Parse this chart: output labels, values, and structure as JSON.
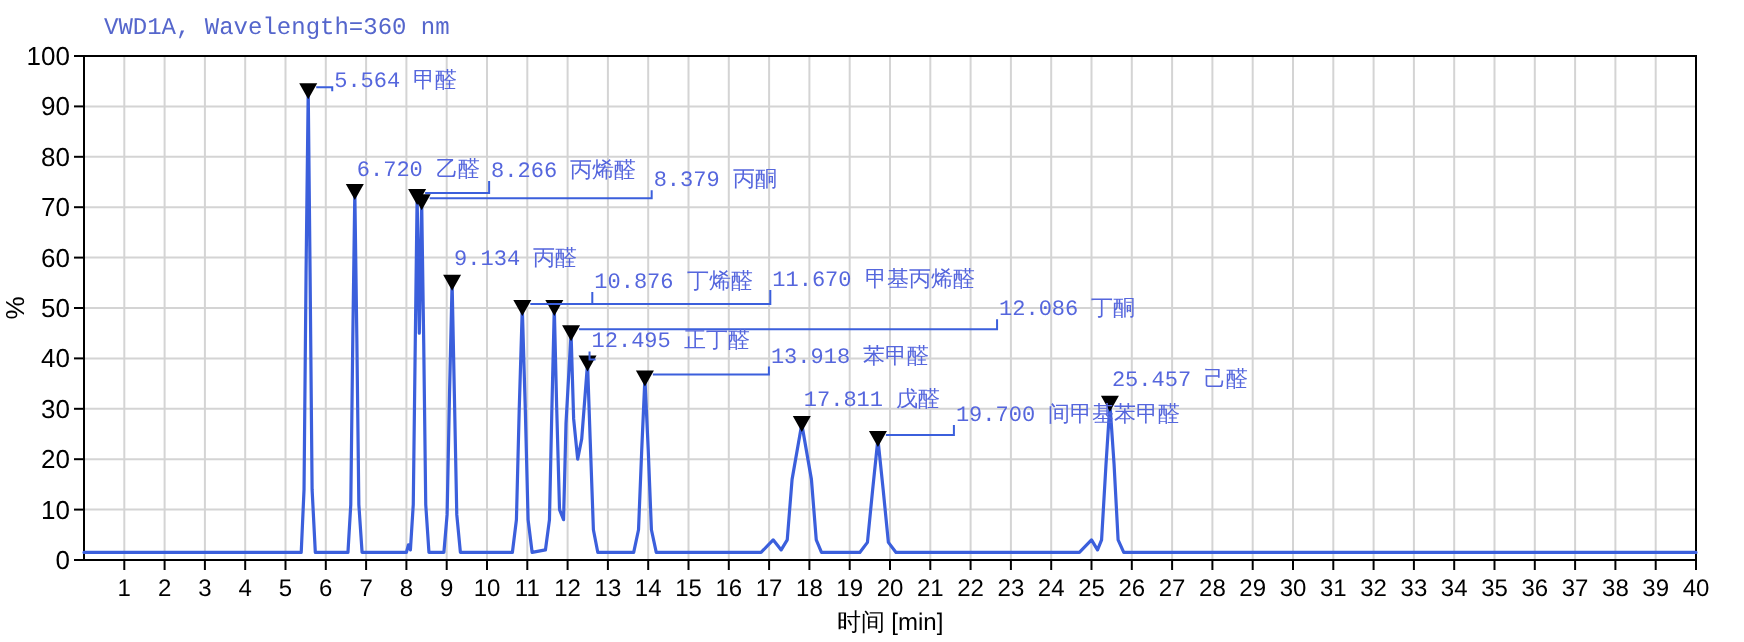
{
  "chart_data": {
    "type": "line",
    "title": "VWD1A, Wavelength=360 nm",
    "xlabel": "时间 [min]",
    "ylabel": "%",
    "xlim": [
      0,
      40
    ],
    "ylim": [
      0,
      100
    ],
    "xticks": [
      1,
      2,
      3,
      4,
      5,
      6,
      7,
      8,
      9,
      10,
      11,
      12,
      13,
      14,
      15,
      16,
      17,
      18,
      19,
      20,
      21,
      22,
      23,
      24,
      25,
      26,
      27,
      28,
      29,
      30,
      31,
      32,
      33,
      34,
      35,
      36,
      37,
      38,
      39,
      40
    ],
    "yticks": [
      0,
      10,
      20,
      30,
      40,
      50,
      60,
      70,
      80,
      90,
      100
    ],
    "grid": true,
    "x": [
      0,
      5.39,
      5.46,
      5.51,
      5.564,
      5.61,
      5.66,
      5.74,
      6.55,
      6.62,
      6.67,
      6.72,
      6.77,
      6.82,
      6.9,
      8.0,
      8.05,
      8.1,
      8.17,
      8.22,
      8.266,
      8.32,
      8.379,
      8.43,
      8.48,
      8.56,
      8.93,
      9.01,
      9.07,
      9.134,
      9.19,
      9.25,
      9.34,
      10.63,
      10.73,
      10.8,
      10.876,
      10.95,
      11.02,
      11.12,
      11.45,
      11.55,
      11.61,
      11.67,
      11.73,
      11.8,
      11.9,
      11.96,
      12.086,
      12.15,
      12.25,
      12.35,
      12.495,
      12.56,
      12.64,
      12.75,
      13.64,
      13.76,
      13.84,
      13.918,
      14.0,
      14.08,
      14.2,
      16.8,
      17.1,
      17.3,
      17.45,
      17.57,
      17.811,
      18.05,
      18.17,
      18.3,
      19.25,
      19.44,
      19.57,
      19.7,
      19.83,
      19.96,
      20.15,
      24.7,
      25.0,
      25.15,
      25.25,
      25.36,
      25.457,
      25.56,
      25.66,
      25.8,
      40
    ],
    "series": [
      {
        "color": "#3b5fdc",
        "values": [
          1.5,
          1.5,
          14,
          57,
          93,
          57,
          14,
          1.5,
          1.5,
          11,
          44,
          73,
          44,
          11,
          1.5,
          1.5,
          3,
          2,
          11,
          43,
          72,
          45,
          71,
          43,
          11,
          1.5,
          1.5,
          9,
          33,
          55,
          33,
          9,
          1.5,
          1.5,
          8,
          30,
          50,
          30,
          8,
          1.5,
          2,
          8,
          30,
          50,
          30,
          10,
          8,
          27,
          45,
          28,
          20,
          24,
          39,
          24,
          6,
          1.5,
          1.5,
          6,
          22,
          36,
          22,
          6,
          1.5,
          1.5,
          4,
          2,
          4,
          16,
          27,
          16,
          4,
          1.5,
          1.5,
          3.5,
          14,
          24,
          14,
          3.5,
          1.5,
          1.5,
          4,
          2,
          4,
          19,
          31,
          19,
          4,
          1.5,
          1.5
        ]
      },
      {
        "type": "scatter",
        "marker": "triangle",
        "color": "#000000",
        "x": [
          5.564,
          6.72,
          8.266,
          8.379,
          9.134,
          10.876,
          11.67,
          12.086,
          12.495,
          13.918,
          17.811,
          19.7,
          25.457
        ],
        "values": [
          93,
          73,
          72,
          71,
          55,
          50,
          50,
          45,
          39,
          36,
          27,
          24,
          31
        ]
      }
    ],
    "annotations": [
      {
        "text": "5.564 甲醛",
        "x": 5.564,
        "y": 93
      },
      {
        "text": "6.720 乙醛",
        "x": 6.72,
        "y": 73
      },
      {
        "text": "8.266 丙烯醛",
        "x": 8.266,
        "y": 72
      },
      {
        "text": "8.379 丙酮",
        "x": 8.379,
        "y": 71
      },
      {
        "text": "9.134 丙醛",
        "x": 9.134,
        "y": 55
      },
      {
        "text": "10.876 丁烯醛",
        "x": 10.876,
        "y": 50
      },
      {
        "text": "11.670 甲基丙烯醛",
        "x": 11.67,
        "y": 50
      },
      {
        "text": "12.086 丁酮",
        "x": 12.086,
        "y": 45
      },
      {
        "text": "12.495 正丁醛",
        "x": 12.495,
        "y": 39
      },
      {
        "text": "13.918 苯甲醛",
        "x": 13.918,
        "y": 36
      },
      {
        "text": "17.811 戊醛",
        "x": 17.811,
        "y": 27
      },
      {
        "text": "19.700 间甲基苯甲醛",
        "x": 19.7,
        "y": 24
      },
      {
        "text": "25.457 己醛",
        "x": 25.457,
        "y": 31
      }
    ]
  }
}
